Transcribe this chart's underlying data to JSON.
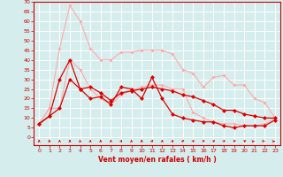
{
  "x": [
    0,
    1,
    2,
    3,
    4,
    5,
    6,
    7,
    8,
    9,
    10,
    11,
    12,
    13,
    14,
    15,
    16,
    17,
    18,
    19,
    20,
    21,
    22,
    23
  ],
  "series": [
    {
      "name": "max_gust",
      "color": "#ffaaaa",
      "linewidth": 0.8,
      "markersize": 2.0,
      "values": [
        7,
        15,
        46,
        68,
        60,
        46,
        40,
        40,
        44,
        44,
        45,
        45,
        45,
        43,
        35,
        33,
        26,
        31,
        32,
        27,
        27,
        20,
        18,
        10
      ]
    },
    {
      "name": "mean_gust",
      "color": "#ffaaaa",
      "linewidth": 0.8,
      "markersize": 2.0,
      "values": [
        7,
        15,
        15,
        40,
        35,
        25,
        20,
        17,
        22,
        24,
        26,
        27,
        27,
        25,
        25,
        13,
        10,
        8,
        7,
        7,
        6,
        6,
        7,
        10
      ]
    },
    {
      "name": "max_wind",
      "color": "#dd0000",
      "linewidth": 0.9,
      "markersize": 2.5,
      "values": [
        7,
        11,
        30,
        40,
        25,
        20,
        21,
        17,
        26,
        25,
        20,
        31,
        20,
        12,
        10,
        9,
        8,
        8,
        6,
        5,
        6,
        6,
        6,
        9
      ]
    },
    {
      "name": "mean_wind",
      "color": "#dd0000",
      "linewidth": 0.9,
      "markersize": 2.5,
      "values": [
        7,
        11,
        15,
        30,
        25,
        26,
        23,
        19,
        23,
        24,
        25,
        26,
        25,
        24,
        22,
        21,
        19,
        17,
        14,
        14,
        12,
        11,
        10,
        10
      ]
    }
  ],
  "xlabel": "Vent moyen/en rafales ( km/h )",
  "xlim": [
    -0.5,
    23.5
  ],
  "ylim": [
    -4,
    70
  ],
  "yticks": [
    0,
    5,
    10,
    15,
    20,
    25,
    30,
    35,
    40,
    45,
    50,
    55,
    60,
    65,
    70
  ],
  "xticks": [
    0,
    1,
    2,
    3,
    4,
    5,
    6,
    7,
    8,
    9,
    10,
    11,
    12,
    13,
    14,
    15,
    16,
    17,
    18,
    19,
    20,
    21,
    22,
    23
  ],
  "bg_color": "#d5eded",
  "grid_color": "#ffffff",
  "text_color": "#cc0000",
  "arrow_angles": [
    90,
    90,
    90,
    90,
    90,
    85,
    90,
    90,
    75,
    90,
    90,
    70,
    80,
    75,
    65,
    55,
    50,
    50,
    55,
    40,
    35,
    5,
    355,
    5
  ]
}
